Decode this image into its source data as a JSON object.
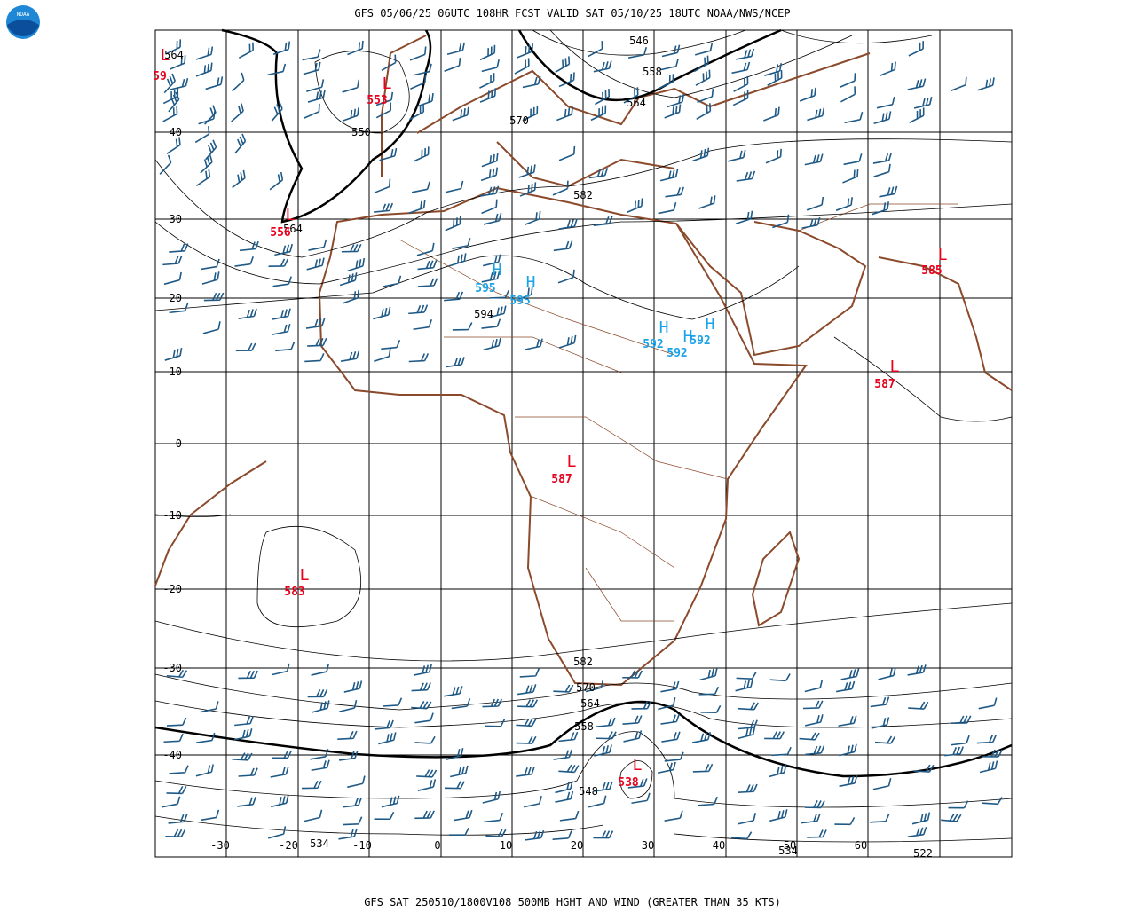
{
  "header": "GFS 05/06/25 06UTC 108HR FCST VALID SAT 05/10/25 18UTC NOAA/NWS/NCEP",
  "footer": "GFS SAT 250510/1800V108 500MB HGHT AND WIND (GREATER THAN 35 KTS)",
  "logo": "NOAA",
  "lat_labels": [
    "40",
    "30",
    "20",
    "10",
    "0",
    "-10",
    "-20",
    "-30",
    "-40"
  ],
  "lon_labels": [
    "-30",
    "-20",
    "-10",
    "0",
    "10",
    "20",
    "30",
    "40",
    "50",
    "60"
  ],
  "contour_labels": [
    "546",
    "558",
    "564",
    "570",
    "550",
    "582",
    "594",
    "564",
    "564",
    "582",
    "570",
    "564",
    "558",
    "548",
    "534",
    "534",
    "522"
  ],
  "centers": [
    {
      "symbol": "L",
      "value": "59"
    },
    {
      "symbol": "L",
      "value": "553"
    },
    {
      "symbol": "L",
      "value": "556"
    },
    {
      "symbol": "H",
      "value": "595"
    },
    {
      "symbol": "H",
      "value": "595"
    },
    {
      "symbol": "H",
      "value": "592"
    },
    {
      "symbol": "H",
      "value": "592"
    },
    {
      "symbol": "H",
      "value": "592"
    },
    {
      "symbol": "L",
      "value": "585"
    },
    {
      "symbol": "L",
      "value": "587"
    },
    {
      "symbol": "L",
      "value": "587"
    },
    {
      "symbol": "L",
      "value": "583"
    },
    {
      "symbol": "L",
      "value": "538"
    }
  ]
}
